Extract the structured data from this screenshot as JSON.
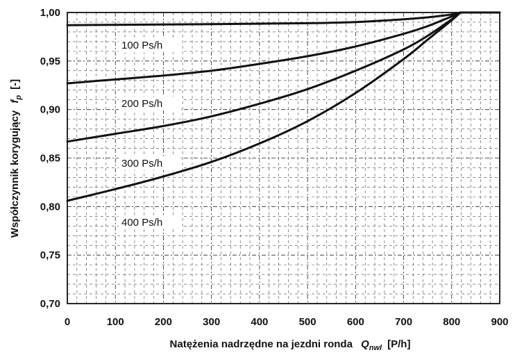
{
  "chart_data": {
    "type": "line",
    "xlabel": {
      "main": "Natężenia nadrzędne na jezdni ronda",
      "symbol": "Q",
      "subscript": "nwl",
      "unit": "[P/h]"
    },
    "ylabel": {
      "main": "Współczynnik korygujący",
      "symbol": "f",
      "subscript": "p",
      "unit": "[-]"
    },
    "xlim": [
      0,
      900
    ],
    "ylim": [
      0.7,
      1.0
    ],
    "x_ticks": [
      0,
      100,
      200,
      300,
      400,
      500,
      600,
      700,
      800,
      900
    ],
    "x_tick_labels": [
      "0",
      "100",
      "200",
      "300",
      "400",
      "500",
      "600",
      "700",
      "800",
      "900"
    ],
    "y_ticks": [
      0.7,
      0.75,
      0.8,
      0.85,
      0.9,
      0.95,
      1.0
    ],
    "y_tick_labels": [
      "0,70",
      "0,75",
      "0,80",
      "0,85",
      "0,90",
      "0,95",
      "1,00"
    ],
    "grid": true,
    "series": [
      {
        "name": "100 Ps/h",
        "x": [
          0,
          100,
          200,
          300,
          400,
          500,
          600,
          700,
          750,
          800,
          818
        ],
        "y": [
          0.987,
          0.9873,
          0.9876,
          0.988,
          0.9885,
          0.989,
          0.9902,
          0.993,
          0.995,
          0.998,
          1.0
        ]
      },
      {
        "name": "200 Ps/h",
        "x": [
          0,
          100,
          200,
          300,
          400,
          500,
          600,
          700,
          750,
          800,
          818
        ],
        "y": [
          0.927,
          0.931,
          0.935,
          0.94,
          0.947,
          0.955,
          0.965,
          0.978,
          0.986,
          0.996,
          1.0
        ]
      },
      {
        "name": "300 Ps/h",
        "x": [
          0,
          100,
          200,
          300,
          400,
          500,
          600,
          700,
          750,
          800,
          818
        ],
        "y": [
          0.867,
          0.875,
          0.883,
          0.893,
          0.906,
          0.921,
          0.94,
          0.962,
          0.976,
          0.993,
          1.0
        ]
      },
      {
        "name": "400 Ps/h",
        "x": [
          0,
          100,
          200,
          300,
          400,
          500,
          600,
          700,
          750,
          800,
          818
        ],
        "y": [
          0.806,
          0.818,
          0.831,
          0.846,
          0.865,
          0.888,
          0.917,
          0.952,
          0.972,
          0.992,
          1.0
        ]
      }
    ],
    "colors": {
      "line": "#111111",
      "grid": "#222222",
      "background": "#ffffff"
    }
  }
}
